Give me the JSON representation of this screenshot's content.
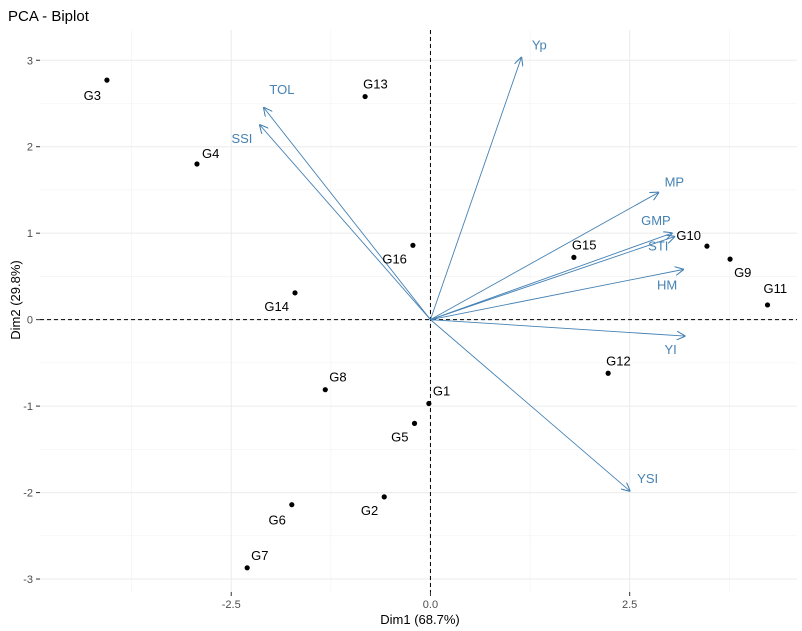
{
  "chart_data": {
    "type": "scatter",
    "title": "PCA - Biplot",
    "xlabel": "Dim1 (68.7%)",
    "ylabel": "Dim2 (29.8%)",
    "xlim": [
      -4.9,
      4.6
    ],
    "ylim": [
      -3.15,
      3.35
    ],
    "xticks": [
      -2.5,
      0.0,
      2.5
    ],
    "xtick_labels": [
      "-2.5",
      "0.0",
      "2.5"
    ],
    "yticks": [
      -3,
      -2,
      -1,
      0,
      1,
      2,
      3
    ],
    "ytick_labels": [
      "-3",
      "-2",
      "-1",
      "0",
      "1",
      "2",
      "3"
    ],
    "points": [
      {
        "label": "G1",
        "x": -0.02,
        "y": -0.97
      },
      {
        "label": "G2",
        "x": -0.58,
        "y": -2.05
      },
      {
        "label": "G3",
        "x": -4.06,
        "y": 2.77
      },
      {
        "label": "G4",
        "x": -2.93,
        "y": 1.8
      },
      {
        "label": "G5",
        "x": -0.2,
        "y": -1.2
      },
      {
        "label": "G6",
        "x": -1.74,
        "y": -2.14
      },
      {
        "label": "G7",
        "x": -2.3,
        "y": -2.87
      },
      {
        "label": "G8",
        "x": -1.32,
        "y": -0.81
      },
      {
        "label": "G9",
        "x": 3.76,
        "y": 0.7
      },
      {
        "label": "G10",
        "x": 3.47,
        "y": 0.85
      },
      {
        "label": "G11",
        "x": 4.23,
        "y": 0.17
      },
      {
        "label": "G12",
        "x": 2.23,
        "y": -0.62
      },
      {
        "label": "G13",
        "x": -0.82,
        "y": 2.58
      },
      {
        "label": "G14",
        "x": -1.7,
        "y": 0.31
      },
      {
        "label": "G15",
        "x": 1.8,
        "y": 0.72
      },
      {
        "label": "G16",
        "x": -0.22,
        "y": 0.86
      }
    ],
    "variables": [
      {
        "label": "Yp",
        "x": 1.14,
        "y": 3.03
      },
      {
        "label": "TOL",
        "x": -2.09,
        "y": 2.45
      },
      {
        "label": "SSI",
        "x": -2.14,
        "y": 2.25
      },
      {
        "label": "MP",
        "x": 2.86,
        "y": 1.47
      },
      {
        "label": "GMP",
        "x": 3.03,
        "y": 1.0
      },
      {
        "label": "STI",
        "x": 3.06,
        "y": 0.96
      },
      {
        "label": "HM",
        "x": 3.17,
        "y": 0.58
      },
      {
        "label": "YI",
        "x": 3.19,
        "y": -0.19
      },
      {
        "label": "YSI",
        "x": 2.5,
        "y": -1.98
      }
    ],
    "point_color": "#000000",
    "variable_color": "#4682b4",
    "grid": true
  }
}
